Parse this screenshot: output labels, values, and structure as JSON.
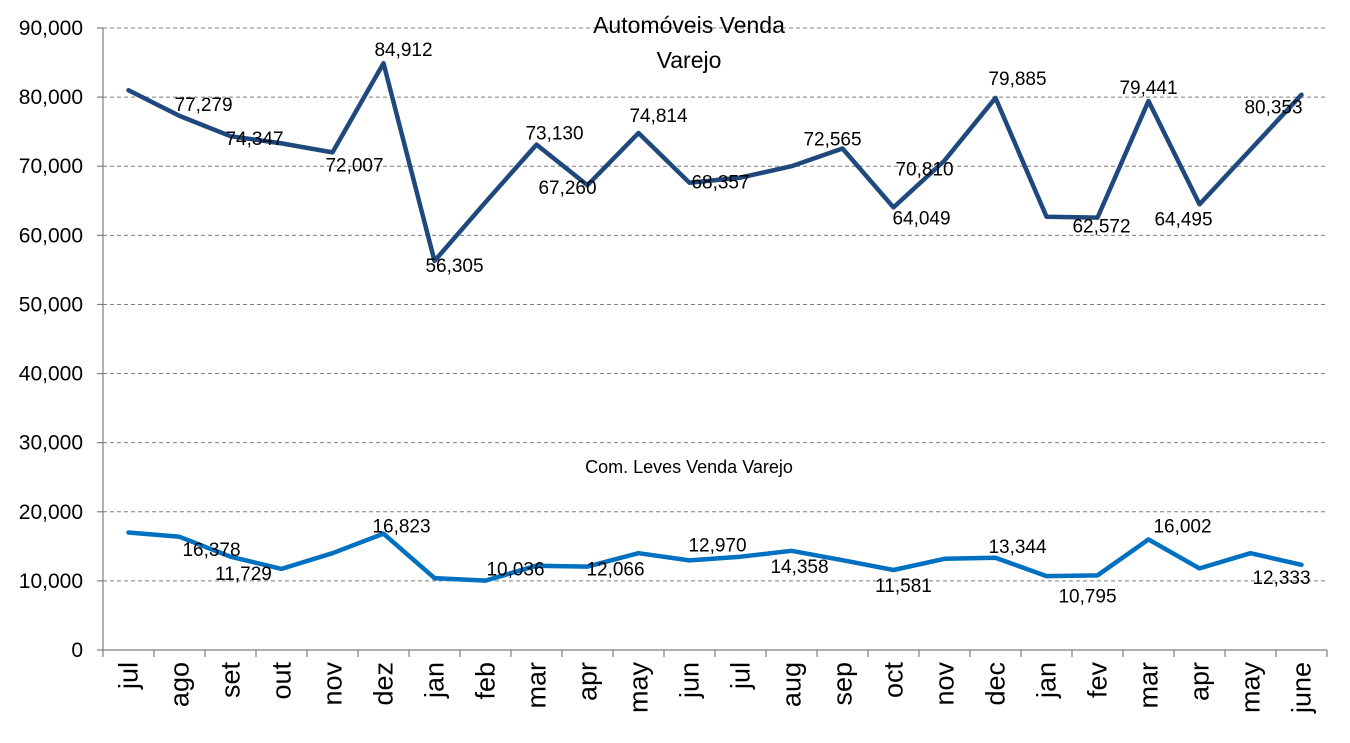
{
  "chart_data": {
    "type": "line",
    "categories": [
      "jul",
      "ago",
      "set",
      "out",
      "nov",
      "dez",
      "jan",
      "feb",
      "mar",
      "apr",
      "may",
      "jun",
      "jul",
      "aug",
      "sep",
      "oct",
      "nov",
      "dec",
      "jan",
      "fev",
      "mar",
      "apr",
      "may",
      "june"
    ],
    "ylim": [
      0,
      90000
    ],
    "yticks": [
      0,
      10000,
      20000,
      30000,
      40000,
      50000,
      60000,
      70000,
      80000,
      90000
    ],
    "ytick_labels": [
      "0",
      "10,000",
      "20,000",
      "30,000",
      "40,000",
      "50,000",
      "60,000",
      "70,000",
      "80,000",
      "90,000"
    ],
    "grid": true,
    "series": [
      {
        "name_line1": "Automóveis Venda",
        "name_line2": "Varejo",
        "color": "#1f497d",
        "values": [
          81000,
          77279,
          74347,
          73300,
          72007,
          84912,
          56305,
          64800,
          73130,
          67260,
          74814,
          67600,
          68357,
          70000,
          72565,
          64049,
          70810,
          79885,
          62700,
          62572,
          79441,
          64495,
          72400,
          80353
        ],
        "labels": [
          "",
          "77,279",
          "74,347",
          "",
          "72,007",
          "84,912",
          "56,305",
          "",
          "73,130",
          "67,260",
          "74,814",
          "",
          "68,357",
          "",
          "72,565",
          "64,049",
          "70,810",
          "79,885",
          "",
          "62,572",
          "79,441",
          "64,495",
          "",
          "80,353"
        ]
      },
      {
        "name": "Com. Leves Venda Varejo",
        "color": "#0070c0",
        "values": [
          17000,
          16378,
          13500,
          11729,
          14000,
          16823,
          10400,
          10036,
          12200,
          12066,
          14000,
          12970,
          13500,
          14358,
          13000,
          11581,
          13200,
          13344,
          10700,
          10795,
          16002,
          11800,
          14000,
          12333
        ],
        "labels": [
          "",
          "16,378",
          "",
          "11,729",
          "",
          "16,823",
          "",
          "10,036",
          "",
          "12,066",
          "",
          "12,970",
          "",
          "14,358",
          "",
          "11,581",
          "",
          "13,344",
          "",
          "10,795",
          "16,002",
          "",
          "",
          "12,333"
        ]
      }
    ]
  }
}
